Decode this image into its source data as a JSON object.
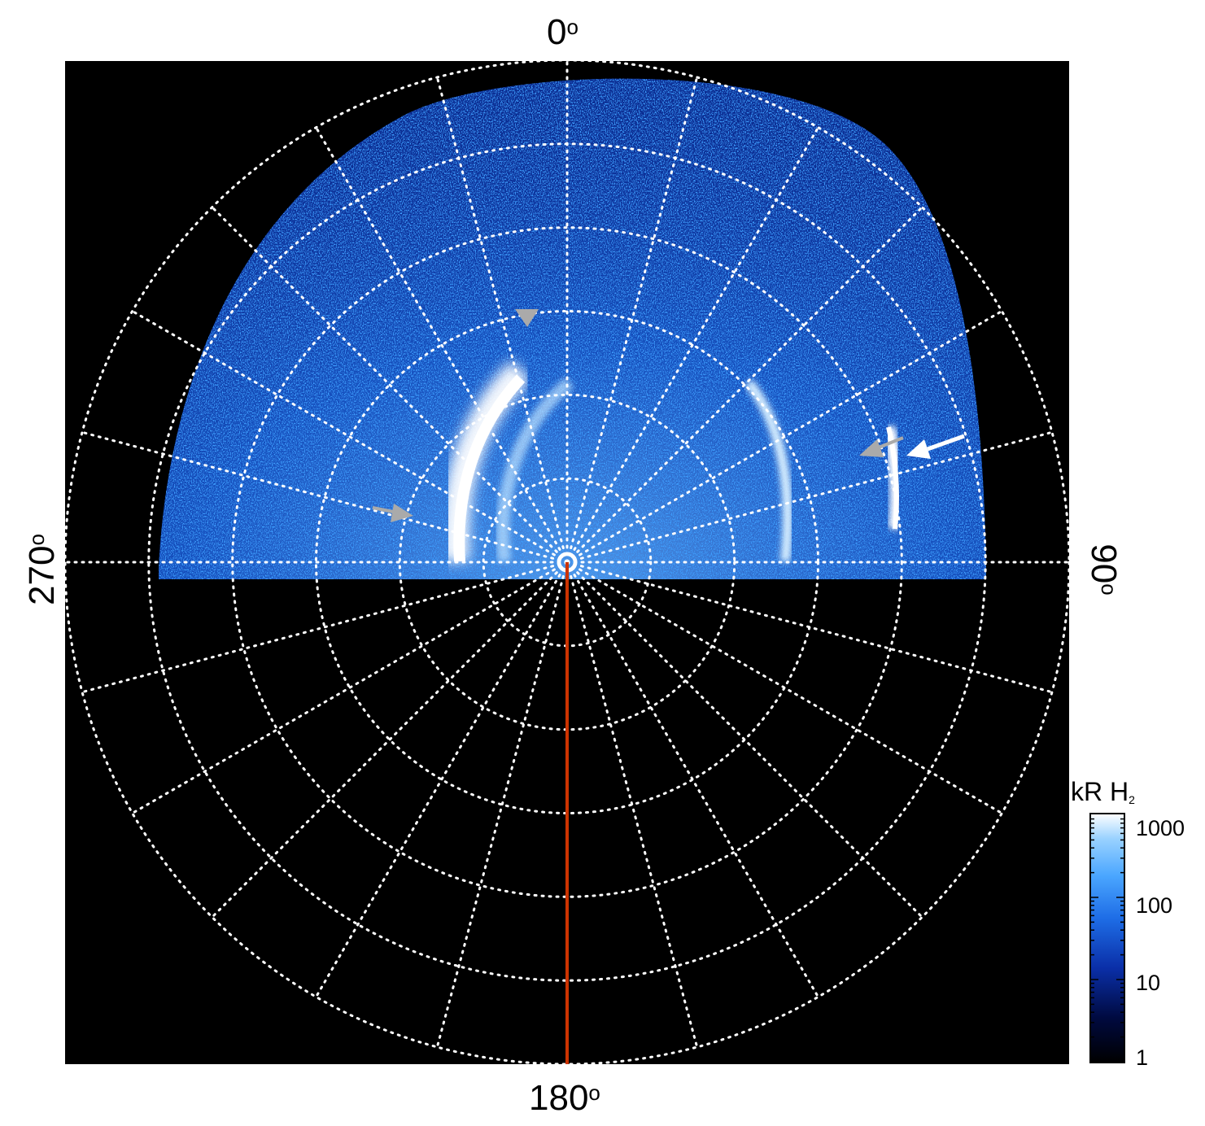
{
  "figure": {
    "direction_labels": {
      "top": "0",
      "right": "90",
      "bottom": "180",
      "left": "270",
      "degree_symbol": "o"
    },
    "colorbar": {
      "title_main": "kR H",
      "title_subscript": "2",
      "tick_labels": [
        "1000",
        "100",
        "10",
        "1"
      ],
      "scale": "log",
      "range": [
        1,
        1000
      ],
      "colors": [
        "#000000",
        "#000a40",
        "#0a2fa8",
        "#1e6de6",
        "#4aa6ff",
        "#9ad2ff",
        "#ffffff"
      ]
    },
    "grid": {
      "style": "dotted",
      "color": "#ffffff",
      "radial_lines_every_deg": 15,
      "rings": 6
    },
    "meridian_line_color": "#cc3300",
    "background_color": "#000000",
    "arrow_colors": {
      "gray": "#aaaaaa",
      "white": "#ffffff"
    }
  }
}
